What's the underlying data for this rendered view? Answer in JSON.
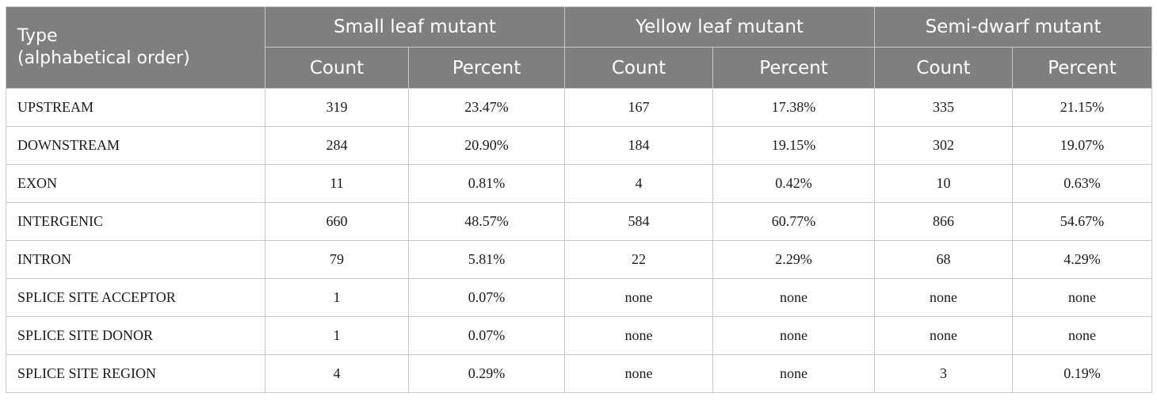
{
  "header": {
    "type_line1": "Type",
    "type_line2": "(alphabetical order)",
    "groups": [
      "Small leaf mutant",
      "Yellow leaf mutant",
      "Semi-dwarf mutant"
    ],
    "sub": [
      "Count",
      "Percent",
      "Count",
      "Percent",
      "Count",
      "Percent"
    ]
  },
  "rows": [
    {
      "type": "UPSTREAM",
      "cells": [
        "319",
        "23.47%",
        "167",
        "17.38%",
        "335",
        "21.15%"
      ]
    },
    {
      "type": "DOWNSTREAM",
      "cells": [
        "284",
        "20.90%",
        "184",
        "19.15%",
        "302",
        "19.07%"
      ]
    },
    {
      "type": "EXON",
      "cells": [
        "11",
        "0.81%",
        "4",
        "0.42%",
        "10",
        "0.63%"
      ]
    },
    {
      "type": "INTERGENIC",
      "cells": [
        "660",
        "48.57%",
        "584",
        "60.77%",
        "866",
        "54.67%"
      ]
    },
    {
      "type": "INTRON",
      "cells": [
        "79",
        "5.81%",
        "22",
        "2.29%",
        "68",
        "4.29%"
      ]
    },
    {
      "type": "SPLICE SITE ACCEPTOR",
      "cells": [
        "1",
        "0.07%",
        "none",
        "none",
        "none",
        "none"
      ]
    },
    {
      "type": "SPLICE SITE DONOR",
      "cells": [
        "1",
        "0.07%",
        "none",
        "none",
        "none",
        "none"
      ]
    },
    {
      "type": "SPLICE SITE REGION",
      "cells": [
        "4",
        "0.29%",
        "none",
        "none",
        "3",
        "0.19%"
      ]
    }
  ]
}
